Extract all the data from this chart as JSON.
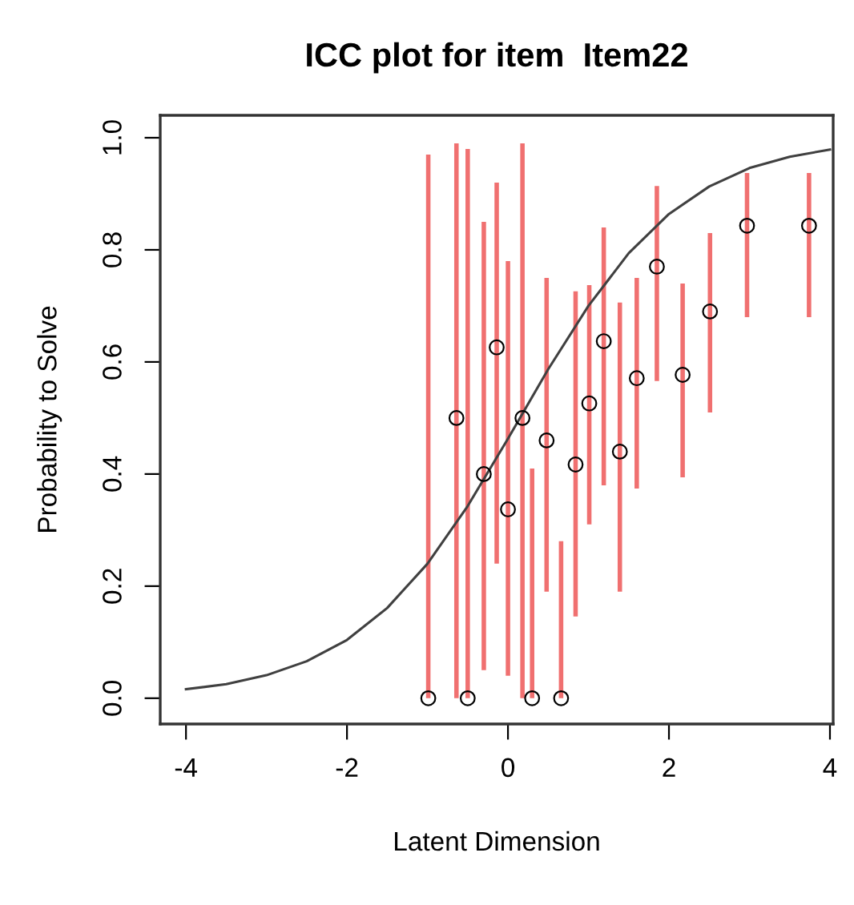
{
  "chart_data": {
    "type": "scatter",
    "title": "ICC plot for item  Item22",
    "xlabel": "Latent Dimension",
    "ylabel": "Probability to Solve",
    "xlim": [
      -4.32,
      4.04
    ],
    "ylim": [
      -0.046,
      1.04
    ],
    "xticks": [
      -4,
      -2,
      0,
      2,
      4
    ],
    "yticks": [
      {
        "value": 0,
        "label": "0.0"
      },
      0.2,
      0.4,
      0.6,
      0.8,
      {
        "value": 1,
        "label": "1.0"
      }
    ],
    "grid": false,
    "legend": false,
    "marker": "circle",
    "series": [
      {
        "type": "line",
        "color": "#404040",
        "marker": "none",
        "line_style": "solid",
        "x": [
          -4,
          -3.5,
          -3,
          -2.5,
          -2,
          -1.5,
          -1,
          -0.5,
          0,
          0.5,
          1,
          1.5,
          2,
          2.5,
          3,
          3.5,
          4
        ],
        "values": [
          0.016,
          0.025,
          0.041,
          0.066,
          0.104,
          0.161,
          0.24,
          0.343,
          0.463,
          0.587,
          0.7,
          0.794,
          0.864,
          0.913,
          0.946,
          0.966,
          0.979
        ]
      },
      {
        "color": "#000000",
        "x": [
          -0.99,
          -0.64,
          -0.5,
          -0.3,
          -0.14,
          0.0,
          0.18,
          0.3,
          0.48,
          0.66,
          0.84,
          1.01,
          1.19,
          1.39,
          1.6,
          1.85,
          2.17,
          2.51,
          2.97,
          3.74
        ],
        "values": [
          0,
          0.5,
          0,
          0.4,
          0.626,
          0.337,
          0.5,
          0,
          0.46,
          0,
          0.417,
          0.526,
          0.637,
          0.44,
          0.571,
          0.77,
          0.577,
          0.69,
          0.843,
          0.843
        ],
        "errors": [
          [
            0,
            0.97
          ],
          [
            0,
            0.99
          ],
          [
            0,
            0.98
          ],
          [
            0.05,
            0.85
          ],
          [
            0.24,
            0.92
          ],
          [
            0.04,
            0.78
          ],
          [
            0,
            0.99
          ],
          [
            0,
            0.41
          ],
          [
            0.19,
            0.75
          ],
          [
            0,
            0.28
          ],
          [
            0.146,
            0.726
          ],
          [
            0.31,
            0.737
          ],
          [
            0.38,
            0.84
          ],
          [
            0.19,
            0.706
          ],
          [
            0.374,
            0.75
          ],
          [
            0.566,
            0.914
          ],
          [
            0.394,
            0.74
          ],
          [
            0.51,
            0.83
          ],
          [
            0.68,
            0.937
          ],
          [
            0.68,
            0.937
          ]
        ]
      }
    ]
  }
}
